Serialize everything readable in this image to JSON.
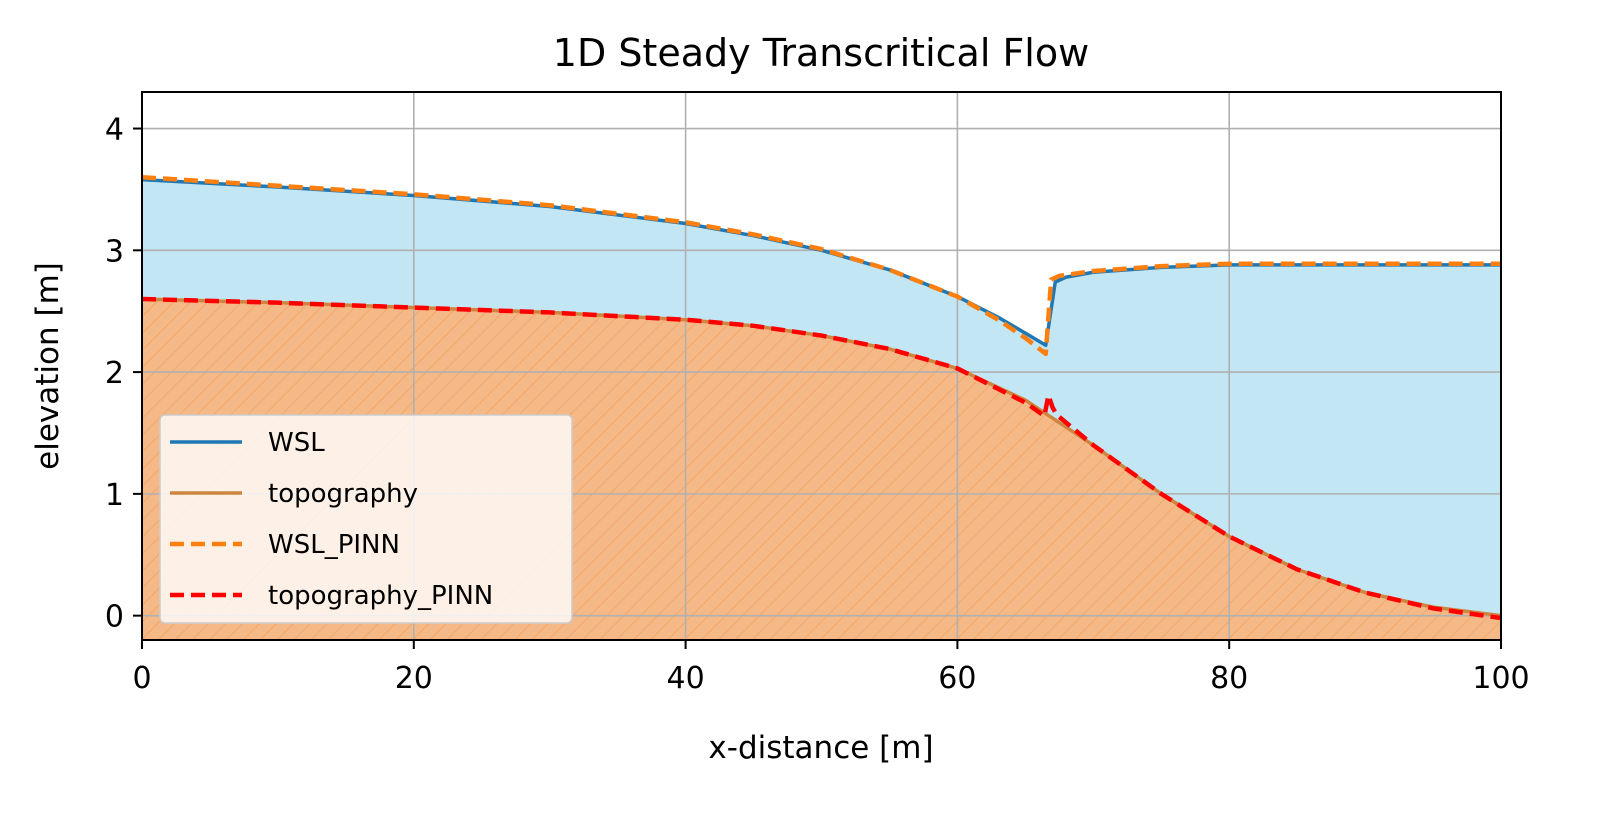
{
  "chart_data": {
    "type": "line",
    "title": "1D Steady Transcritical Flow",
    "xlabel": "x-distance [m]",
    "ylabel": "elevation [m]",
    "xlim": [
      0,
      100
    ],
    "ylim": [
      -0.2,
      4.3
    ],
    "xticks": [
      0,
      20,
      40,
      60,
      80,
      100
    ],
    "yticks": [
      0,
      1,
      2,
      3,
      4
    ],
    "grid": true,
    "legend_position": "lower-left",
    "fills": [
      {
        "between": [
          "topography",
          "WSL"
        ],
        "color": "#87ceeb",
        "alpha": 0.5
      },
      {
        "between": [
          "axis-bottom",
          "topography"
        ],
        "color": "#f4a460",
        "hatch": "diagonal"
      }
    ],
    "series": [
      {
        "name": "WSL",
        "color": "#1f77b4",
        "style": "solid",
        "x": [
          0,
          10,
          20,
          30,
          40,
          45,
          50,
          55,
          60,
          63,
          65,
          66.5,
          67.2,
          68,
          70,
          75,
          80,
          85,
          90,
          100
        ],
        "y": [
          3.58,
          3.52,
          3.45,
          3.36,
          3.22,
          3.12,
          3.0,
          2.84,
          2.62,
          2.45,
          2.32,
          2.22,
          2.74,
          2.78,
          2.82,
          2.86,
          2.88,
          2.88,
          2.88,
          2.88
        ]
      },
      {
        "name": "topography",
        "color": "#cd853f",
        "style": "solid",
        "x": [
          0,
          10,
          20,
          30,
          40,
          45,
          50,
          55,
          60,
          65,
          70,
          75,
          80,
          85,
          90,
          95,
          100
        ],
        "y": [
          2.6,
          2.57,
          2.53,
          2.49,
          2.43,
          2.38,
          2.3,
          2.19,
          2.03,
          1.77,
          1.4,
          1.0,
          0.65,
          0.38,
          0.19,
          0.07,
          0.0
        ]
      },
      {
        "name": "WSL_PINN",
        "color": "#ff7f0e",
        "style": "dashed",
        "x": [
          0,
          10,
          20,
          30,
          40,
          45,
          50,
          55,
          60,
          63,
          65,
          66.5,
          66.9,
          67.5,
          70,
          75,
          80,
          85,
          90,
          100
        ],
        "y": [
          3.6,
          3.53,
          3.46,
          3.37,
          3.23,
          3.13,
          3.01,
          2.84,
          2.62,
          2.43,
          2.28,
          2.15,
          2.76,
          2.79,
          2.83,
          2.87,
          2.89,
          2.89,
          2.89,
          2.89
        ]
      },
      {
        "name": "topography_PINN",
        "color": "#ff0000",
        "style": "dashed",
        "x": [
          0,
          10,
          20,
          30,
          40,
          45,
          50,
          55,
          60,
          65,
          66.4,
          66.7,
          67.0,
          67.3,
          70,
          75,
          80,
          85,
          90,
          95,
          100
        ],
        "y": [
          2.6,
          2.57,
          2.53,
          2.49,
          2.43,
          2.38,
          2.3,
          2.19,
          2.03,
          1.75,
          1.64,
          1.81,
          1.71,
          1.65,
          1.4,
          1.0,
          0.65,
          0.38,
          0.19,
          0.06,
          -0.02
        ]
      }
    ]
  }
}
